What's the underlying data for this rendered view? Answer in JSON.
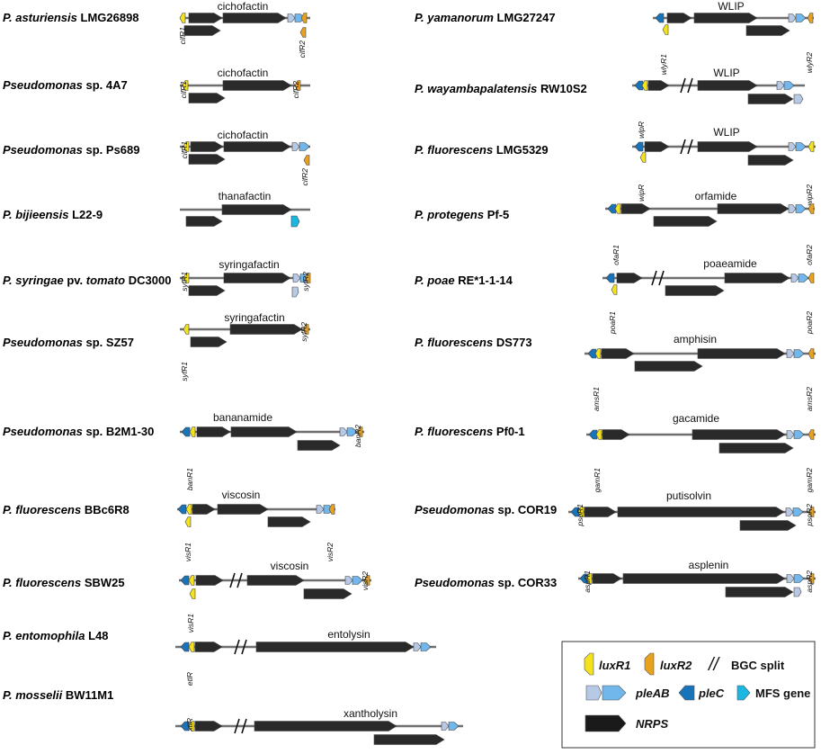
{
  "colors": {
    "backbone": "#6f6f6f",
    "nrps": "#2a2a2a",
    "luxR1": "#f4e21c",
    "luxR2": "#e8a21d",
    "pleA": "#b8c9e6",
    "pleB": "#72b7ec",
    "pleC": "#1973b8",
    "mfs": "#1cb6e3",
    "legend_border": "#333333"
  },
  "figure": {
    "left_entries": [
      {
        "strain_species": "P. asturiensis",
        "strain_id": "LMG26898",
        "cluster": "cichofactin",
        "labels": [
          "cifR1",
          "cifR2"
        ]
      },
      {
        "strain_species": "Pseudomonas",
        "strain_suffix": "sp.",
        "strain_id": "4A7",
        "cluster": "cichofactin",
        "labels": [
          "cifR1",
          "cifR2"
        ]
      },
      {
        "strain_species": "Pseudomonas",
        "strain_suffix": "sp.",
        "strain_id": "Ps689",
        "cluster": "cichofactin",
        "labels": [
          "cifR1",
          "cifR2"
        ]
      },
      {
        "strain_species": "P. bijieensis",
        "strain_id": "L22-9",
        "cluster": "thanafactin",
        "labels": []
      },
      {
        "strain_species": "P. syringae",
        "strain_suffix": "pv.",
        "strain_species2": "tomato",
        "strain_id": "DC3000",
        "cluster": "syringafactin",
        "labels": [
          "syfR1",
          "syfR2"
        ]
      },
      {
        "strain_species": "Pseudomonas",
        "strain_suffix": "sp.",
        "strain_id": "SZ57",
        "cluster": "syringafactin",
        "labels": [
          "syfR1",
          "syfR2"
        ]
      },
      {
        "strain_species": "Pseudomonas",
        "strain_suffix": "sp.",
        "strain_id": "B2M1-30",
        "cluster": "bananamide",
        "labels": [
          "banR1",
          "banR2"
        ]
      },
      {
        "strain_species": "P. fluorescens",
        "strain_id": "BBc6R8",
        "cluster": "viscosin",
        "labels": [
          "visR1",
          "visR2"
        ]
      },
      {
        "strain_species": "P. fluorescens",
        "strain_id": "SBW25",
        "cluster": "viscosin",
        "labels": [
          "visR1",
          "visR2"
        ]
      },
      {
        "strain_species": "P. entomophila",
        "strain_id": "L48",
        "cluster": "entolysin",
        "labels": [
          "etlR"
        ]
      },
      {
        "strain_species": "P. mosselii",
        "strain_id": "BW11M1",
        "cluster": "xantholysin",
        "labels": [
          "xtlR"
        ]
      }
    ],
    "right_entries": [
      {
        "strain_species": "P. yamanorum",
        "strain_id": "LMG27247",
        "cluster": "WLIP",
        "labels": [
          "wlyR1",
          "wlyR2"
        ]
      },
      {
        "strain_species": "P. wayambapalatensis",
        "strain_id": "RW10S2",
        "cluster": "WLIP",
        "labels": [
          "wlpR"
        ]
      },
      {
        "strain_species": "P. fluorescens",
        "strain_id": "LMG5329",
        "cluster": "WLIP",
        "labels": [
          "wipR",
          "wipR2"
        ]
      },
      {
        "strain_species": "P. protegens",
        "strain_id": "Pf-5",
        "cluster": "orfamide",
        "labels": [
          "ofaR1",
          "ofaR2"
        ]
      },
      {
        "strain_species": "P. poae",
        "strain_id": "RE*1-1-14",
        "cluster": "poaeamide",
        "labels": [
          "poaR1",
          "poaR2"
        ]
      },
      {
        "strain_species": "P. fluorescens",
        "strain_id": "DS773",
        "cluster": "amphisin",
        "labels": [
          "amsR1",
          "amsR2"
        ]
      },
      {
        "strain_species": "P. fluorescens",
        "strain_id": "Pf0-1",
        "cluster": "gacamide",
        "labels": [
          "gamR1",
          "gamR2"
        ]
      },
      {
        "strain_species": "Pseudomonas",
        "strain_suffix": "sp.",
        "strain_id": "COR19",
        "cluster": "putisolvin",
        "labels": [
          "psoR1",
          "psoR2"
        ]
      },
      {
        "strain_species": "Pseudomonas",
        "strain_suffix": "sp.",
        "strain_id": "COR33",
        "cluster": "asplenin",
        "labels": [
          "aspR1",
          "aspR2"
        ]
      }
    ],
    "legend": {
      "luxR1": "luxR1",
      "luxR2": "luxR2",
      "split_symbol": "//",
      "split": "BGC split",
      "pleAB": "pleAB",
      "pleC": "pleC",
      "mfs": "MFS gene",
      "nrps": "NRPS"
    }
  }
}
